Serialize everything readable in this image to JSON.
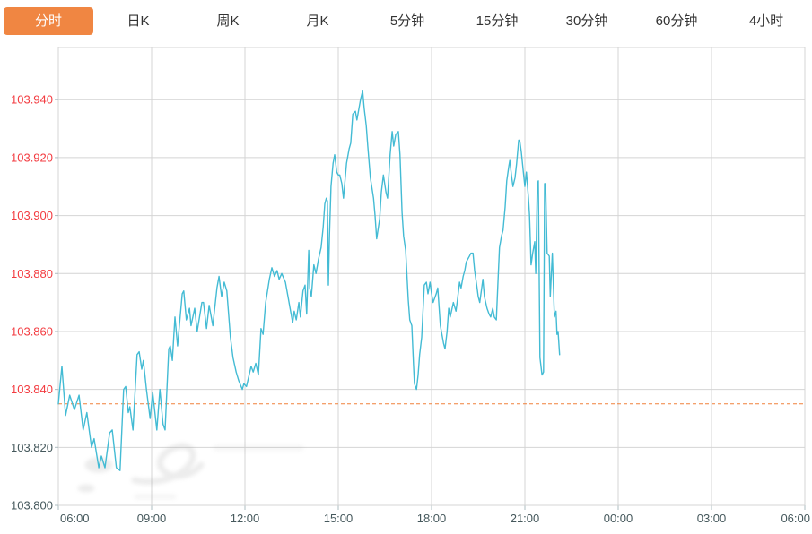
{
  "tab_bar": {
    "active_bg": "#f08642",
    "items": [
      {
        "id": "minute",
        "label": "分时",
        "active": true
      },
      {
        "id": "daily-k",
        "label": "日K",
        "active": false
      },
      {
        "id": "weekly-k",
        "label": "周K",
        "active": false
      },
      {
        "id": "monthly-k",
        "label": "月K",
        "active": false
      },
      {
        "id": "5min",
        "label": "5分钟",
        "active": false
      },
      {
        "id": "15min",
        "label": "15分钟",
        "active": false
      },
      {
        "id": "30min",
        "label": "30分钟",
        "active": false
      },
      {
        "id": "60min",
        "label": "60分钟",
        "active": false
      },
      {
        "id": "4hour",
        "label": "4小时",
        "active": false
      }
    ]
  },
  "chart_data": {
    "type": "line",
    "title": "",
    "line_color": "#43bbd4",
    "grid_color": "#d4d4d4",
    "background": "#ffffff",
    "legend": [],
    "x_axis": {
      "tick_labels": [
        "06:00",
        "09:00",
        "12:00",
        "15:00",
        "18:00",
        "21:00",
        "00:00",
        "03:00",
        "06:00"
      ],
      "tick_minutes": [
        0,
        180,
        360,
        540,
        720,
        900,
        1080,
        1260,
        1440
      ],
      "label_color": "#45585c",
      "xlim_minutes": [
        0,
        1440
      ]
    },
    "y_axis": {
      "tick_prices": [
        103.94,
        103.92,
        103.9,
        103.88,
        103.86,
        103.84,
        103.82,
        103.8
      ],
      "ylim": [
        103.8,
        103.958
      ],
      "above_ref_color": "#f33b40",
      "below_ref_color": "#45585c",
      "decimals": 3
    },
    "reference_line": {
      "price": 103.835,
      "color": "#f0803a",
      "style": "dashed"
    },
    "series": [
      {
        "name": "price",
        "points": [
          [
            0,
            103.835
          ],
          [
            7,
            103.848
          ],
          [
            14,
            103.831
          ],
          [
            22,
            103.838
          ],
          [
            31,
            103.833
          ],
          [
            40,
            103.838
          ],
          [
            48,
            103.826
          ],
          [
            55,
            103.832
          ],
          [
            64,
            103.82
          ],
          [
            69,
            103.823
          ],
          [
            78,
            103.813
          ],
          [
            83,
            103.817
          ],
          [
            90,
            103.813
          ],
          [
            99,
            103.825
          ],
          [
            104,
            103.826
          ],
          [
            112,
            103.813
          ],
          [
            119,
            103.812
          ],
          [
            126,
            103.84
          ],
          [
            130,
            103.841
          ],
          [
            135,
            103.832
          ],
          [
            138,
            103.834
          ],
          [
            144,
            103.826
          ],
          [
            152,
            103.852
          ],
          [
            156,
            103.853
          ],
          [
            161,
            103.847
          ],
          [
            164,
            103.85
          ],
          [
            170,
            103.84
          ],
          [
            177,
            103.83
          ],
          [
            182,
            103.839
          ],
          [
            190,
            103.826
          ],
          [
            196,
            103.84
          ],
          [
            202,
            103.828
          ],
          [
            206,
            103.826
          ],
          [
            213,
            103.854
          ],
          [
            216,
            103.855
          ],
          [
            220,
            103.85
          ],
          [
            225,
            103.865
          ],
          [
            230,
            103.855
          ],
          [
            239,
            103.873
          ],
          [
            242,
            103.874
          ],
          [
            247,
            103.864
          ],
          [
            253,
            103.868
          ],
          [
            256,
            103.862
          ],
          [
            263,
            103.868
          ],
          [
            268,
            103.86
          ],
          [
            277,
            103.87
          ],
          [
            280,
            103.87
          ],
          [
            286,
            103.861
          ],
          [
            291,
            103.869
          ],
          [
            298,
            103.862
          ],
          [
            306,
            103.875
          ],
          [
            310,
            103.879
          ],
          [
            315,
            103.872
          ],
          [
            320,
            103.877
          ],
          [
            325,
            103.874
          ],
          [
            332,
            103.858
          ],
          [
            337,
            103.851
          ],
          [
            343,
            103.846
          ],
          [
            348,
            103.843
          ],
          [
            355,
            103.84
          ],
          [
            358,
            103.842
          ],
          [
            363,
            103.841
          ],
          [
            372,
            103.848
          ],
          [
            376,
            103.846
          ],
          [
            381,
            103.849
          ],
          [
            386,
            103.845
          ],
          [
            391,
            103.861
          ],
          [
            395,
            103.859
          ],
          [
            400,
            103.87
          ],
          [
            407,
            103.878
          ],
          [
            412,
            103.882
          ],
          [
            417,
            103.879
          ],
          [
            422,
            103.881
          ],
          [
            426,
            103.878
          ],
          [
            431,
            103.88
          ],
          [
            438,
            103.877
          ],
          [
            443,
            103.872
          ],
          [
            447,
            103.868
          ],
          [
            452,
            103.863
          ],
          [
            455,
            103.867
          ],
          [
            459,
            103.864
          ],
          [
            464,
            103.87
          ],
          [
            467,
            103.865
          ],
          [
            472,
            103.874
          ],
          [
            476,
            103.876
          ],
          [
            479,
            103.866
          ],
          [
            483,
            103.888
          ],
          [
            485,
            103.875
          ],
          [
            488,
            103.872
          ],
          [
            493,
            103.883
          ],
          [
            497,
            103.88
          ],
          [
            502,
            103.885
          ],
          [
            507,
            103.889
          ],
          [
            511,
            103.896
          ],
          [
            514,
            103.904
          ],
          [
            517,
            103.906
          ],
          [
            519,
            103.905
          ],
          [
            521,
            103.876
          ],
          [
            523,
            103.893
          ],
          [
            526,
            103.91
          ],
          [
            530,
            103.918
          ],
          [
            533,
            103.921
          ],
          [
            537,
            103.915
          ],
          [
            540,
            103.914
          ],
          [
            543,
            103.914
          ],
          [
            547,
            103.911
          ],
          [
            550,
            103.906
          ],
          [
            556,
            103.918
          ],
          [
            561,
            103.923
          ],
          [
            564,
            103.925
          ],
          [
            568,
            103.935
          ],
          [
            573,
            103.936
          ],
          [
            576,
            103.933
          ],
          [
            583,
            103.94
          ],
          [
            587,
            103.943
          ],
          [
            590,
            103.937
          ],
          [
            594,
            103.931
          ],
          [
            597,
            103.924
          ],
          [
            602,
            103.913
          ],
          [
            608,
            103.906
          ],
          [
            611,
            103.9
          ],
          [
            614,
            103.892
          ],
          [
            620,
            103.899
          ],
          [
            623,
            103.908
          ],
          [
            627,
            103.914
          ],
          [
            632,
            103.908
          ],
          [
            635,
            103.906
          ],
          [
            640,
            103.921
          ],
          [
            644,
            103.929
          ],
          [
            647,
            103.924
          ],
          [
            651,
            103.928
          ],
          [
            656,
            103.929
          ],
          [
            659,
            103.921
          ],
          [
            663,
            103.901
          ],
          [
            666,
            103.893
          ],
          [
            670,
            103.888
          ],
          [
            675,
            103.871
          ],
          [
            678,
            103.864
          ],
          [
            682,
            103.862
          ],
          [
            685,
            103.849
          ],
          [
            687,
            103.842
          ],
          [
            691,
            103.84
          ],
          [
            694,
            103.845
          ],
          [
            697,
            103.852
          ],
          [
            701,
            103.858
          ],
          [
            706,
            103.876
          ],
          [
            710,
            103.877
          ],
          [
            713,
            103.873
          ],
          [
            717,
            103.877
          ],
          [
            720,
            103.873
          ],
          [
            723,
            103.87
          ],
          [
            729,
            103.873
          ],
          [
            732,
            103.875
          ],
          [
            737,
            103.862
          ],
          [
            743,
            103.856
          ],
          [
            746,
            103.854
          ],
          [
            750,
            103.86
          ],
          [
            753,
            103.868
          ],
          [
            756,
            103.865
          ],
          [
            762,
            103.87
          ],
          [
            767,
            103.867
          ],
          [
            770,
            103.871
          ],
          [
            774,
            103.877
          ],
          [
            777,
            103.875
          ],
          [
            781,
            103.879
          ],
          [
            784,
            103.881
          ],
          [
            787,
            103.884
          ],
          [
            793,
            103.886
          ],
          [
            796,
            103.887
          ],
          [
            800,
            103.887
          ],
          [
            803,
            103.881
          ],
          [
            807,
            103.876
          ],
          [
            810,
            103.872
          ],
          [
            813,
            103.87
          ],
          [
            819,
            103.878
          ],
          [
            822,
            103.872
          ],
          [
            827,
            103.868
          ],
          [
            831,
            103.866
          ],
          [
            834,
            103.865
          ],
          [
            838,
            103.868
          ],
          [
            841,
            103.865
          ],
          [
            845,
            103.864
          ],
          [
            848,
            103.877
          ],
          [
            851,
            103.889
          ],
          [
            855,
            103.893
          ],
          [
            858,
            103.895
          ],
          [
            862,
            103.903
          ],
          [
            865,
            103.912
          ],
          [
            869,
            103.917
          ],
          [
            871,
            103.919
          ],
          [
            874,
            103.914
          ],
          [
            877,
            103.91
          ],
          [
            881,
            103.913
          ],
          [
            884,
            103.918
          ],
          [
            888,
            103.926
          ],
          [
            890,
            103.926
          ],
          [
            893,
            103.922
          ],
          [
            897,
            103.915
          ],
          [
            900,
            103.91
          ],
          [
            903,
            103.915
          ],
          [
            907,
            103.906
          ],
          [
            909,
            103.9
          ],
          [
            912,
            103.883
          ],
          [
            915,
            103.887
          ],
          [
            919,
            103.891
          ],
          [
            921,
            103.88
          ],
          [
            924,
            103.911
          ],
          [
            926,
            103.912
          ],
          [
            929,
            103.851
          ],
          [
            933,
            103.845
          ],
          [
            936,
            103.846
          ],
          [
            938,
            103.911
          ],
          [
            940,
            103.911
          ],
          [
            943,
            103.887
          ],
          [
            947,
            103.886
          ],
          [
            949,
            103.872
          ],
          [
            953,
            103.887
          ],
          [
            957,
            103.865
          ],
          [
            960,
            103.867
          ],
          [
            962,
            103.859
          ],
          [
            964,
            103.86
          ],
          [
            967,
            103.852
          ]
        ]
      }
    ]
  },
  "watermark": {
    "color": "#9a9a9a",
    "opacity": 0.18
  }
}
